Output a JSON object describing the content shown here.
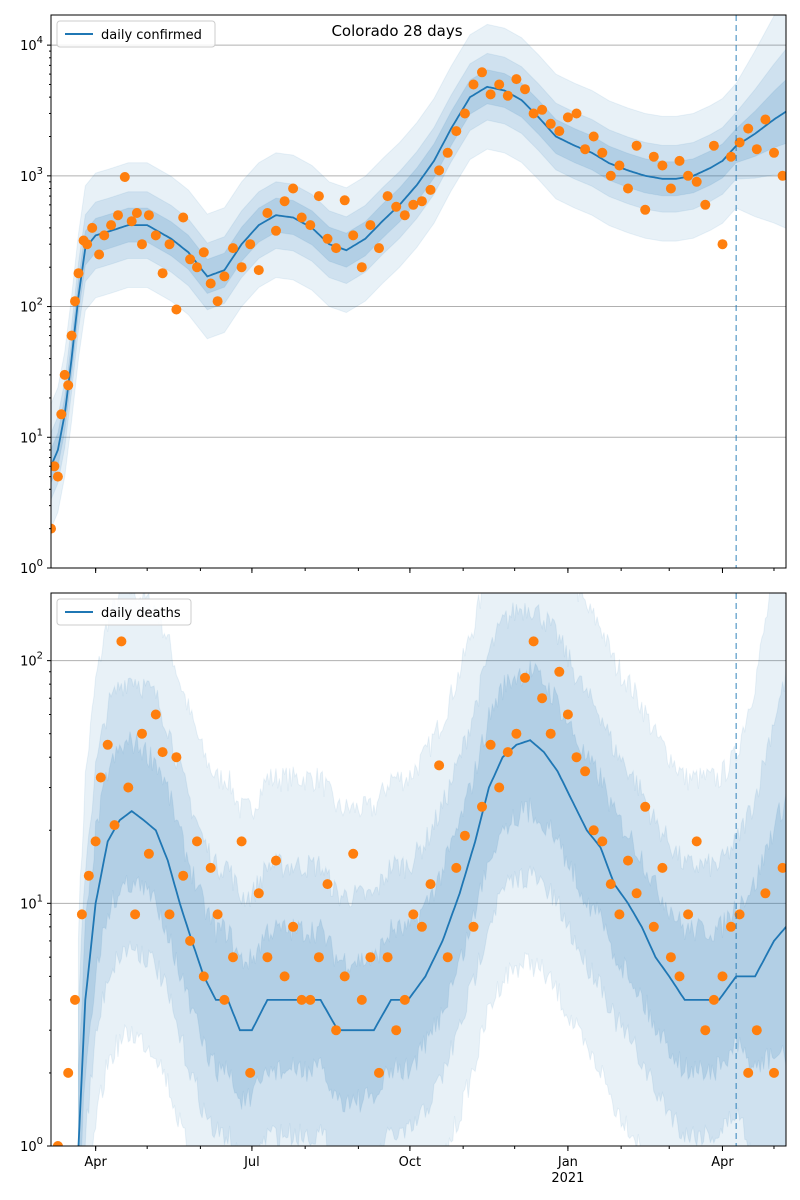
{
  "chart_data": [
    {
      "type": "line",
      "title": "Colorado 28 days",
      "legend": {
        "label": "daily confirmed",
        "placement": "top-left"
      },
      "yscale": "log",
      "ylim": [
        1,
        17000
      ],
      "xlim": [
        "2020-03-06",
        "2021-05-08"
      ],
      "grid": "y-major",
      "y_ticks": [
        {
          "value": 1,
          "label": "10^0"
        },
        {
          "value": 10,
          "label": "10^1"
        },
        {
          "value": 100,
          "label": "10^2"
        },
        {
          "value": 1000,
          "label": "10^3"
        },
        {
          "value": 10000,
          "label": "10^4"
        }
      ],
      "x_ticks": [
        {
          "date": "2020-04-01",
          "label": ""
        },
        {
          "date": "2020-07-01",
          "label": ""
        },
        {
          "date": "2020-10-01",
          "label": ""
        },
        {
          "date": "2021-01-01",
          "label": ""
        },
        {
          "date": "2021-04-01",
          "label": ""
        }
      ],
      "vline_date": "2021-04-09",
      "line_color": "#1f77b4",
      "point_color": "#ff7f0e",
      "series": [
        {
          "name": "daily confirmed",
          "kind": "line",
          "x": [
            "2020-03-06",
            "2020-03-10",
            "2020-03-14",
            "2020-03-18",
            "2020-03-22",
            "2020-03-26",
            "2020-04-01",
            "2020-04-10",
            "2020-04-20",
            "2020-05-01",
            "2020-05-15",
            "2020-05-25",
            "2020-06-05",
            "2020-06-15",
            "2020-06-25",
            "2020-07-05",
            "2020-07-15",
            "2020-07-25",
            "2020-08-05",
            "2020-08-15",
            "2020-08-25",
            "2020-09-05",
            "2020-09-15",
            "2020-09-25",
            "2020-10-05",
            "2020-10-15",
            "2020-10-25",
            "2020-11-05",
            "2020-11-15",
            "2020-11-25",
            "2020-12-05",
            "2020-12-15",
            "2020-12-25",
            "2021-01-05",
            "2021-01-15",
            "2021-01-25",
            "2021-02-05",
            "2021-02-15",
            "2021-02-25",
            "2021-03-05",
            "2021-03-15",
            "2021-03-25",
            "2021-04-01",
            "2021-04-09",
            "2021-04-20",
            "2021-05-01",
            "2021-05-08"
          ],
          "y": [
            6,
            8,
            15,
            40,
            120,
            280,
            350,
            380,
            420,
            420,
            330,
            260,
            170,
            190,
            300,
            420,
            500,
            480,
            400,
            300,
            270,
            330,
            450,
            600,
            850,
            1300,
            2300,
            4000,
            4800,
            4500,
            3800,
            2800,
            2000,
            1700,
            1500,
            1250,
            1100,
            1000,
            950,
            950,
            1000,
            1150,
            1300,
            1700,
            2100,
            2700,
            3100
          ]
        },
        {
          "name": "",
          "kind": "scatter",
          "x": [
            "2020-03-06",
            "2020-03-08",
            "2020-03-10",
            "2020-03-12",
            "2020-03-14",
            "2020-03-16",
            "2020-03-18",
            "2020-03-20",
            "2020-03-22",
            "2020-03-25",
            "2020-03-27",
            "2020-03-30",
            "2020-04-03",
            "2020-04-06",
            "2020-04-10",
            "2020-04-14",
            "2020-04-18",
            "2020-04-22",
            "2020-04-25",
            "2020-04-28",
            "2020-05-02",
            "2020-05-06",
            "2020-05-10",
            "2020-05-14",
            "2020-05-18",
            "2020-05-22",
            "2020-05-26",
            "2020-05-30",
            "2020-06-03",
            "2020-06-07",
            "2020-06-11",
            "2020-06-15",
            "2020-06-20",
            "2020-06-25",
            "2020-06-30",
            "2020-07-05",
            "2020-07-10",
            "2020-07-15",
            "2020-07-20",
            "2020-07-25",
            "2020-07-30",
            "2020-08-04",
            "2020-08-09",
            "2020-08-14",
            "2020-08-19",
            "2020-08-24",
            "2020-08-29",
            "2020-09-03",
            "2020-09-08",
            "2020-09-13",
            "2020-09-18",
            "2020-09-23",
            "2020-09-28",
            "2020-10-03",
            "2020-10-08",
            "2020-10-13",
            "2020-10-18",
            "2020-10-23",
            "2020-10-28",
            "2020-11-02",
            "2020-11-07",
            "2020-11-12",
            "2020-11-17",
            "2020-11-22",
            "2020-11-27",
            "2020-12-02",
            "2020-12-07",
            "2020-12-12",
            "2020-12-17",
            "2020-12-22",
            "2020-12-27",
            "2021-01-01",
            "2021-01-06",
            "2021-01-11",
            "2021-01-16",
            "2021-01-21",
            "2021-01-26",
            "2021-01-31",
            "2021-02-05",
            "2021-02-10",
            "2021-02-15",
            "2021-02-20",
            "2021-02-25",
            "2021-03-02",
            "2021-03-07",
            "2021-03-12",
            "2021-03-17",
            "2021-03-22",
            "2021-03-27",
            "2021-04-01",
            "2021-04-06",
            "2021-04-11",
            "2021-04-16",
            "2021-04-21",
            "2021-04-26",
            "2021-05-01",
            "2021-05-06"
          ],
          "y": [
            2,
            6,
            5,
            15,
            30,
            25,
            60,
            110,
            180,
            320,
            300,
            400,
            250,
            350,
            420,
            500,
            980,
            450,
            520,
            300,
            500,
            350,
            180,
            300,
            95,
            480,
            230,
            200,
            260,
            150,
            110,
            170,
            280,
            200,
            300,
            190,
            520,
            380,
            640,
            800,
            480,
            420,
            700,
            330,
            280,
            650,
            350,
            200,
            420,
            280,
            700,
            580,
            500,
            600,
            640,
            780,
            1100,
            1500,
            2200,
            3000,
            5000,
            6200,
            4200,
            5000,
            4100,
            5500,
            4600,
            3000,
            3200,
            2500,
            2200,
            2800,
            3000,
            1600,
            2000,
            1500,
            1000,
            1200,
            800,
            1700,
            550,
            1400,
            1200,
            800,
            1300,
            1000,
            900,
            600,
            1700,
            300,
            1400,
            1800,
            2300,
            1600,
            2700,
            1500,
            1000
          ]
        }
      ]
    },
    {
      "type": "line",
      "title": "",
      "legend": {
        "label": "daily deaths",
        "placement": "top-left"
      },
      "yscale": "log",
      "ylim": [
        1,
        190
      ],
      "xlim": [
        "2020-03-06",
        "2021-05-08"
      ],
      "grid": "y-major",
      "y_ticks": [
        {
          "value": 1,
          "label": "10^0"
        },
        {
          "value": 10,
          "label": "10^1"
        },
        {
          "value": 100,
          "label": "10^2"
        }
      ],
      "x_ticks": [
        {
          "date": "2020-04-01",
          "label": "Apr"
        },
        {
          "date": "2020-07-01",
          "label": "Jul"
        },
        {
          "date": "2020-10-01",
          "label": "Oct"
        },
        {
          "date": "2021-01-01",
          "label": "Jan",
          "sublabel": "2021"
        },
        {
          "date": "2021-04-01",
          "label": "Apr"
        }
      ],
      "vline_date": "2021-04-09",
      "line_color": "#1f77b4",
      "point_color": "#ff7f0e",
      "series": [
        {
          "name": "daily deaths",
          "kind": "line",
          "x": [
            "2020-03-22",
            "2020-03-26",
            "2020-04-01",
            "2020-04-08",
            "2020-04-15",
            "2020-04-22",
            "2020-04-29",
            "2020-05-06",
            "2020-05-13",
            "2020-05-20",
            "2020-05-27",
            "2020-06-03",
            "2020-06-10",
            "2020-06-17",
            "2020-06-24",
            "2020-07-01",
            "2020-07-10",
            "2020-07-20",
            "2020-07-30",
            "2020-08-10",
            "2020-08-20",
            "2020-08-30",
            "2020-09-10",
            "2020-09-20",
            "2020-09-30",
            "2020-10-10",
            "2020-10-20",
            "2020-10-30",
            "2020-11-08",
            "2020-11-16",
            "2020-11-24",
            "2020-12-02",
            "2020-12-10",
            "2020-12-18",
            "2020-12-26",
            "2021-01-04",
            "2021-01-12",
            "2021-01-20",
            "2021-01-28",
            "2021-02-05",
            "2021-02-13",
            "2021-02-21",
            "2021-03-01",
            "2021-03-10",
            "2021-03-20",
            "2021-03-30",
            "2021-04-09",
            "2021-04-20",
            "2021-05-01",
            "2021-05-08"
          ],
          "y": [
            1,
            4,
            10,
            18,
            22,
            24,
            22,
            20,
            15,
            10,
            7,
            5,
            4,
            4,
            3,
            3,
            4,
            4,
            4,
            4,
            3,
            3,
            3,
            4,
            4,
            5,
            7,
            11,
            18,
            30,
            40,
            45,
            47,
            42,
            35,
            26,
            20,
            17,
            12,
            10,
            8,
            6,
            5,
            4,
            4,
            4,
            5,
            5,
            7,
            8
          ]
        },
        {
          "name": "",
          "kind": "scatter",
          "x": [
            "2020-03-10",
            "2020-03-16",
            "2020-03-20",
            "2020-03-24",
            "2020-03-28",
            "2020-04-01",
            "2020-04-04",
            "2020-04-08",
            "2020-04-12",
            "2020-04-16",
            "2020-04-20",
            "2020-04-24",
            "2020-04-28",
            "2020-05-02",
            "2020-05-06",
            "2020-05-10",
            "2020-05-14",
            "2020-05-18",
            "2020-05-22",
            "2020-05-26",
            "2020-05-30",
            "2020-06-03",
            "2020-06-07",
            "2020-06-11",
            "2020-06-15",
            "2020-06-20",
            "2020-06-25",
            "2020-06-30",
            "2020-07-05",
            "2020-07-10",
            "2020-07-15",
            "2020-07-20",
            "2020-07-25",
            "2020-07-30",
            "2020-08-04",
            "2020-08-09",
            "2020-08-14",
            "2020-08-19",
            "2020-08-24",
            "2020-08-29",
            "2020-09-03",
            "2020-09-08",
            "2020-09-13",
            "2020-09-18",
            "2020-09-23",
            "2020-09-28",
            "2020-10-03",
            "2020-10-08",
            "2020-10-13",
            "2020-10-18",
            "2020-10-23",
            "2020-10-28",
            "2020-11-02",
            "2020-11-07",
            "2020-11-12",
            "2020-11-17",
            "2020-11-22",
            "2020-11-27",
            "2020-12-02",
            "2020-12-07",
            "2020-12-12",
            "2020-12-17",
            "2020-12-22",
            "2020-12-27",
            "2021-01-01",
            "2021-01-06",
            "2021-01-11",
            "2021-01-16",
            "2021-01-21",
            "2021-01-26",
            "2021-01-31",
            "2021-02-05",
            "2021-02-10",
            "2021-02-15",
            "2021-02-20",
            "2021-02-25",
            "2021-03-02",
            "2021-03-07",
            "2021-03-12",
            "2021-03-17",
            "2021-03-22",
            "2021-03-27",
            "2021-04-01",
            "2021-04-06",
            "2021-04-11",
            "2021-04-16",
            "2021-04-21",
            "2021-04-26",
            "2021-05-01",
            "2021-05-06"
          ],
          "y": [
            1,
            2,
            4,
            9,
            13,
            18,
            33,
            45,
            21,
            120,
            30,
            9,
            50,
            16,
            60,
            42,
            9,
            40,
            13,
            7,
            18,
            5,
            14,
            9,
            4,
            6,
            18,
            2,
            11,
            6,
            15,
            5,
            8,
            4,
            4,
            6,
            12,
            3,
            5,
            16,
            4,
            6,
            2,
            6,
            3,
            4,
            9,
            8,
            12,
            37,
            6,
            14,
            19,
            8,
            25,
            45,
            30,
            42,
            50,
            85,
            120,
            70,
            50,
            90,
            60,
            40,
            35,
            20,
            18,
            12,
            9,
            15,
            11,
            25,
            8,
            14,
            6,
            5,
            9,
            18,
            3,
            4,
            5,
            8,
            9,
            2,
            3,
            11,
            2,
            14
          ]
        }
      ]
    }
  ]
}
